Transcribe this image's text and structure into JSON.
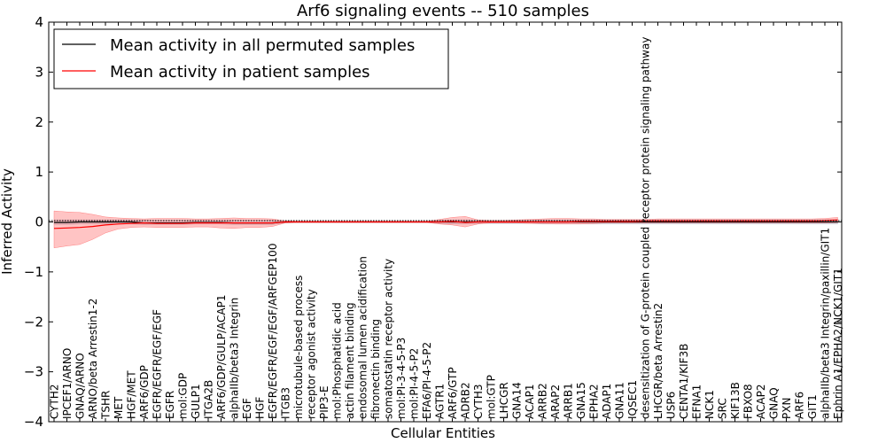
{
  "chart_data": {
    "type": "line",
    "title": "Arf6 signaling events -- 510 samples",
    "xlabel": "Cellular Entities",
    "ylabel": "Inferred Activity",
    "ylim": [
      -4,
      4
    ],
    "yticks": [
      -4,
      -3,
      -2,
      -1,
      0,
      1,
      2,
      3,
      4
    ],
    "ytick_labels": [
      "−4",
      "−3",
      "−2",
      "−1",
      "0",
      "1",
      "2",
      "3",
      "4"
    ],
    "legend": {
      "placement": "top-left",
      "entries": [
        {
          "label": "Mean activity in all permuted samples",
          "color": "#000000"
        },
        {
          "label": "Mean activity in patient samples",
          "color": "#ff0000"
        }
      ]
    },
    "categories": [
      "CYTH2",
      "IPCEF1/ARNO",
      "GNAQ/ARNO",
      "ARNO/beta Arrestin1-2",
      "TSHR",
      "MET",
      "HGF/MET",
      "ARF6/GDP",
      "EGFR/EGFR/EGF/EGF",
      "EGFR",
      "mol:GDP",
      "GULP1",
      "ITGA2B",
      "ARF6/GDP/GULP/ACAP1",
      "alphaIIb/beta3 Integrin",
      "EGF",
      "HGF",
      "EGFR/EGFR/EGF/EGF/ARFGEP100",
      "ITGB3",
      "microtubule-based process",
      "receptor agonist activity",
      "PIP3-E",
      "mol:Phosphatidic acid",
      "actin filament binding",
      "endosomal lumen acidification",
      "fibronectin binding",
      "somatostatin receptor activity",
      "mol:PI-3-4-5-P3",
      "mol:PI-4-5-P2",
      "EFA6/PI-4-5-P2",
      "AGTR1",
      "ARF6/GTP",
      "ADRB2",
      "CYTH3",
      "mol:GTP",
      "LHCGR",
      "GNA14",
      "ACAP1",
      "ARRB2",
      "ARAP2",
      "ARRB1",
      "GNA15",
      "EPHA2",
      "ADAP1",
      "GNA11",
      "IQSEC1",
      "desensitization of G-protein coupled receptor protein signaling pathway",
      "LHCGR/beta Arrestin2",
      "USP6",
      "CENTA1/KIF3B",
      "EFNA1",
      "NCK1",
      "SRC",
      "KIF13B",
      "FBXO8",
      "ACAP2",
      "GNAQ",
      "PXN",
      "ARF6",
      "GIT1",
      "alphaIIb/beta3 Integrin/paxillin/GIT1",
      "Ephrin A1/EPHA2/NCK1/GIT1"
    ],
    "series": [
      {
        "name": "Mean activity in all permuted samples",
        "color": "#000000",
        "values": [
          -0.01,
          -0.01,
          0,
          0,
          0,
          0,
          0,
          -0.02,
          -0.02,
          -0.02,
          -0.02,
          -0.01,
          -0.01,
          -0.01,
          -0.02,
          -0.02,
          -0.02,
          -0.02,
          0,
          0,
          0,
          0,
          0,
          0,
          0,
          0,
          0,
          0,
          0,
          0,
          0,
          0,
          0,
          0,
          0,
          0,
          0,
          0,
          0,
          0,
          0,
          0,
          0,
          0,
          0,
          0,
          0,
          0,
          0,
          0,
          0,
          0,
          0,
          0,
          0,
          0,
          0,
          0,
          0,
          0,
          0,
          0
        ],
        "band": {
          "lower": [
            -0.05,
            -0.05,
            -0.04,
            -0.04,
            -0.04,
            -0.04,
            -0.04,
            -0.05,
            -0.05,
            -0.05,
            -0.05,
            -0.04,
            -0.04,
            -0.04,
            -0.05,
            -0.05,
            -0.05,
            -0.05,
            -0.02,
            -0.01,
            -0.01,
            -0.01,
            -0.01,
            -0.01,
            -0.01,
            -0.01,
            -0.01,
            -0.01,
            -0.01,
            -0.01,
            -0.03,
            -0.04,
            -0.04,
            -0.03,
            -0.03,
            -0.03,
            -0.03,
            -0.03,
            -0.04,
            -0.04,
            -0.04,
            -0.04,
            -0.04,
            -0.04,
            -0.04,
            -0.04,
            -0.04,
            -0.04,
            -0.04,
            -0.04,
            -0.04,
            -0.04,
            -0.04,
            -0.04,
            -0.04,
            -0.04,
            -0.04,
            -0.04,
            -0.04,
            -0.04,
            -0.04,
            -0.04
          ],
          "upper": [
            0.04,
            0.04,
            0.04,
            0.04,
            0.04,
            0.04,
            0.04,
            0.03,
            0.03,
            0.03,
            0.03,
            0.03,
            0.03,
            0.03,
            0.03,
            0.03,
            0.03,
            0.03,
            0.02,
            0.01,
            0.01,
            0.01,
            0.01,
            0.01,
            0.01,
            0.01,
            0.01,
            0.01,
            0.01,
            0.01,
            0.03,
            0.04,
            0.04,
            0.03,
            0.03,
            0.03,
            0.03,
            0.03,
            0.04,
            0.04,
            0.04,
            0.04,
            0.04,
            0.04,
            0.04,
            0.04,
            0.04,
            0.04,
            0.04,
            0.04,
            0.04,
            0.04,
            0.04,
            0.04,
            0.04,
            0.04,
            0.04,
            0.04,
            0.04,
            0.04,
            0.04,
            0.04
          ]
        }
      },
      {
        "name": "Mean activity in patient samples",
        "color": "#ff0000",
        "values": [
          -0.13,
          -0.12,
          -0.11,
          -0.09,
          -0.06,
          -0.04,
          -0.03,
          -0.02,
          -0.03,
          -0.03,
          -0.03,
          -0.02,
          -0.02,
          -0.02,
          -0.02,
          -0.02,
          -0.02,
          -0.02,
          0,
          0,
          0,
          0,
          0,
          0,
          0,
          0,
          0,
          0,
          0,
          0,
          0,
          0.01,
          -0.01,
          0,
          0,
          0,
          0,
          0,
          0,
          0,
          0,
          0.01,
          0.01,
          0.01,
          0.01,
          0.01,
          0.02,
          0.02,
          0.02,
          0.02,
          0.02,
          0.02,
          0.02,
          0.02,
          0.02,
          0.02,
          0.02,
          0.02,
          0.02,
          0.02,
          0.03,
          0.04
        ],
        "band": {
          "lower": [
            -0.52,
            -0.48,
            -0.45,
            -0.35,
            -0.22,
            -0.14,
            -0.11,
            -0.1,
            -0.11,
            -0.11,
            -0.11,
            -0.1,
            -0.1,
            -0.12,
            -0.13,
            -0.11,
            -0.11,
            -0.09,
            -0.02,
            -0.01,
            -0.01,
            -0.01,
            -0.01,
            -0.01,
            -0.01,
            -0.01,
            -0.01,
            -0.01,
            -0.01,
            -0.01,
            -0.04,
            -0.06,
            -0.1,
            -0.04,
            -0.02,
            -0.02,
            -0.02,
            -0.03,
            -0.03,
            -0.04,
            -0.04,
            -0.04,
            -0.03,
            -0.02,
            -0.02,
            -0.02,
            -0.02,
            -0.02,
            -0.02,
            -0.02,
            -0.02,
            -0.02,
            -0.02,
            -0.02,
            -0.02,
            -0.02,
            -0.02,
            -0.02,
            -0.02,
            -0.02,
            -0.02,
            -0.01
          ],
          "upper": [
            0.22,
            0.2,
            0.19,
            0.15,
            0.1,
            0.08,
            0.07,
            0.06,
            0.07,
            0.07,
            0.07,
            0.06,
            0.06,
            0.07,
            0.08,
            0.07,
            0.07,
            0.06,
            0.02,
            0.01,
            0.01,
            0.01,
            0.01,
            0.01,
            0.01,
            0.01,
            0.01,
            0.01,
            0.01,
            0.01,
            0.05,
            0.09,
            0.11,
            0.04,
            0.03,
            0.03,
            0.04,
            0.05,
            0.06,
            0.07,
            0.07,
            0.06,
            0.06,
            0.05,
            0.05,
            0.05,
            0.05,
            0.06,
            0.06,
            0.06,
            0.06,
            0.06,
            0.06,
            0.06,
            0.06,
            0.06,
            0.06,
            0.06,
            0.06,
            0.06,
            0.07,
            0.09
          ]
        }
      }
    ]
  }
}
